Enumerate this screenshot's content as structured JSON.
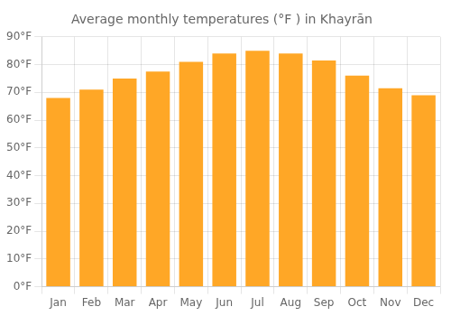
{
  "chart_data": {
    "type": "bar",
    "title": "Average monthly temperatures (°F ) in Khayrān",
    "categories": [
      "Jan",
      "Feb",
      "Mar",
      "Apr",
      "May",
      "Jun",
      "Jul",
      "Aug",
      "Sep",
      "Oct",
      "Nov",
      "Dec"
    ],
    "values": [
      68,
      71,
      75,
      77.5,
      81,
      84,
      85,
      84,
      81.5,
      76,
      71.5,
      69
    ],
    "color": "#FFA726",
    "ylim": [
      0,
      90
    ],
    "yticks": [
      {
        "value": 0,
        "label": "0°F"
      },
      {
        "value": 10,
        "label": "10°F"
      },
      {
        "value": 20,
        "label": "20°F"
      },
      {
        "value": 30,
        "label": "30°F"
      },
      {
        "value": 40,
        "label": "40°F"
      },
      {
        "value": 50,
        "label": "50°F"
      },
      {
        "value": 60,
        "label": "60°F"
      },
      {
        "value": 70,
        "label": "70°F"
      },
      {
        "value": 80,
        "label": "80°F"
      },
      {
        "value": 90,
        "label": "90°F"
      }
    ],
    "grid": true
  }
}
